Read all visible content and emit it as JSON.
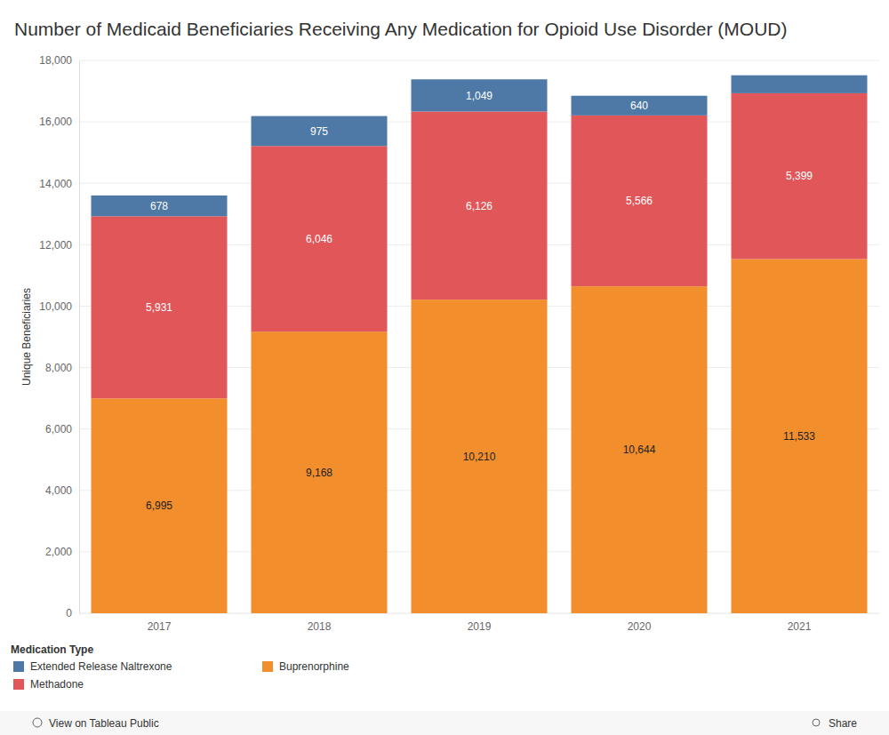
{
  "chart_data": {
    "type": "bar",
    "title": "Number of Medicaid Beneficiaries Receiving Any Medication for Opioid Use Disorder (MOUD)",
    "y_label": "Unique Beneficiaries",
    "legend_title": "Medication Type",
    "categories": [
      "2017",
      "2018",
      "2019",
      "2020",
      "2021"
    ],
    "series": [
      {
        "name": "Extended Release Naltrexone",
        "color": "#4e79a7",
        "values": [
          678,
          975,
          1049,
          640,
          585
        ],
        "value_labels": [
          "678",
          "975",
          "1,049",
          "640",
          null
        ]
      },
      {
        "name": "Methadone",
        "color": "#e15759",
        "values": [
          5931,
          6046,
          6126,
          5566,
          5399
        ],
        "value_labels": [
          "5,931",
          "6,046",
          "6,126",
          "5,566",
          "5,399"
        ]
      },
      {
        "name": "Buprenorphine",
        "color": "#f28e2b",
        "values": [
          6995,
          9168,
          10210,
          10644,
          11533
        ],
        "value_labels": [
          "6,995",
          "9,168",
          "10,210",
          "10,644",
          "11,533"
        ]
      }
    ],
    "stacked": true,
    "data_labels": true,
    "grid": true,
    "legend": "bottom-left",
    "ylim": [
      0,
      18000
    ],
    "yticks": [
      0,
      {
        "value": 2000,
        "label": "2,000"
      },
      {
        "value": 4000,
        "label": "4,000"
      },
      {
        "value": 6000,
        "label": "6,000"
      },
      {
        "value": 8000,
        "label": "8,000"
      },
      {
        "value": 10000,
        "label": "10,000"
      },
      {
        "value": 12000,
        "label": "12,000"
      },
      {
        "value": 14000,
        "label": "14,000"
      },
      {
        "value": 16000,
        "label": "16,000"
      },
      {
        "value": 18000,
        "label": "18,000"
      }
    ]
  },
  "toolbar": {
    "view_link": "View on Tableau Public",
    "share": "Share"
  }
}
